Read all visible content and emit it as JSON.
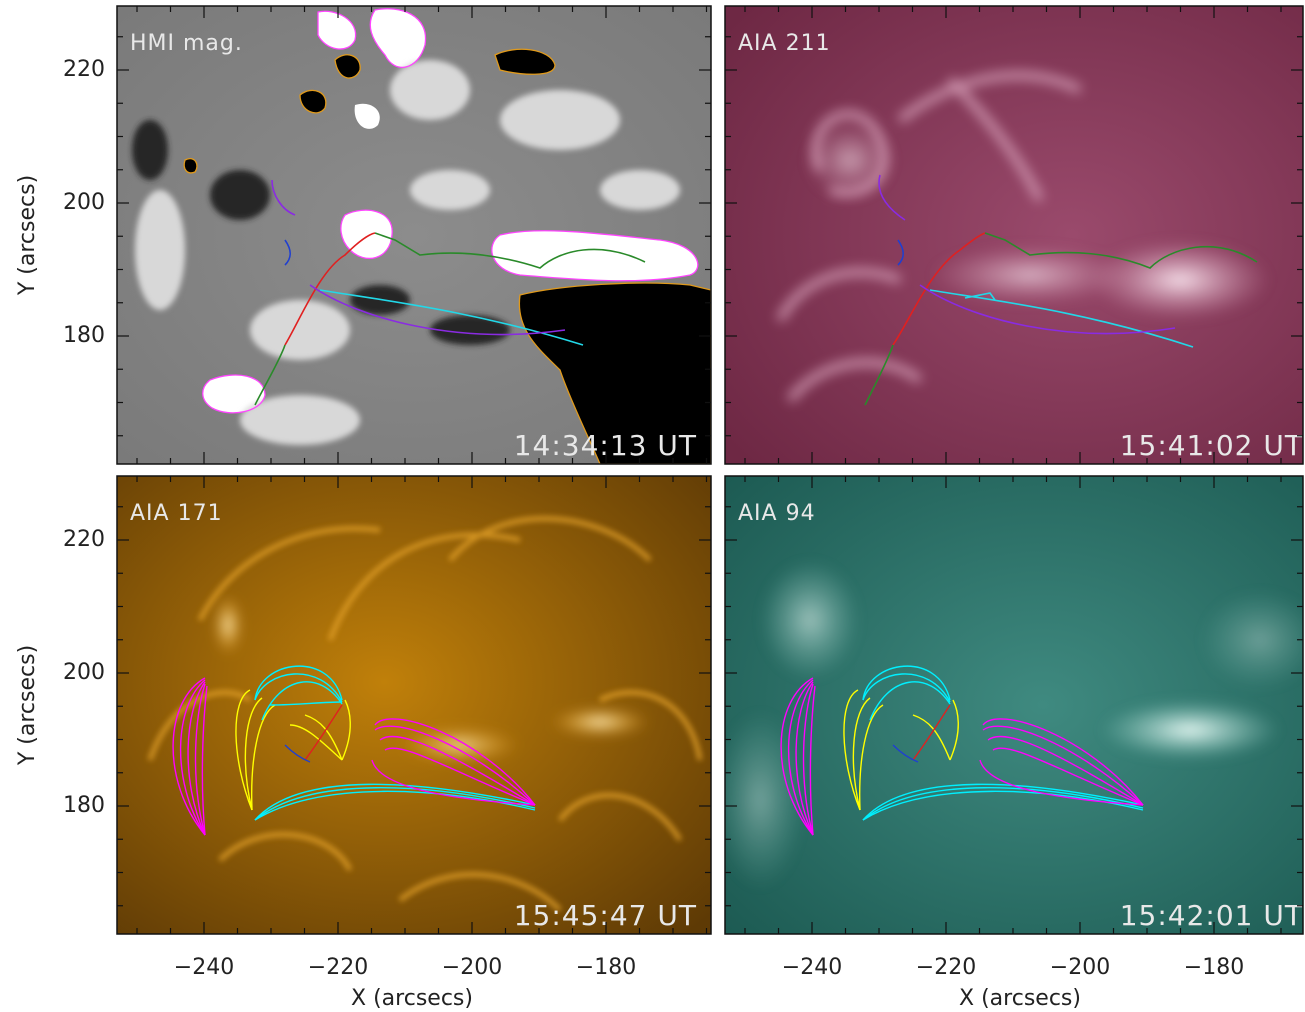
{
  "figure": {
    "x_axis_label": "X (arcsecs)",
    "y_axis_label": "Y (arcsecs)",
    "x_ticks": [
      "−240",
      "−220",
      "−200",
      "−180"
    ],
    "y_ticks": [
      "220",
      "200",
      "180"
    ]
  },
  "panels": [
    {
      "id": "hmi",
      "label": "HMI mag.",
      "time": "14:34:13 UT",
      "colormap": "gray"
    },
    {
      "id": "aia211",
      "label": "AIA 211",
      "time": "15:41:02 UT",
      "colormap": "purple"
    },
    {
      "id": "aia171",
      "label": "AIA 171",
      "time": "15:45:47 UT",
      "colormap": "orange"
    },
    {
      "id": "aia94",
      "label": "AIA 94",
      "time": "15:42:01 UT",
      "colormap": "teal"
    }
  ],
  "colors": {
    "positive_contour": "#ff44ff",
    "negative_contour": "#e09a1c",
    "red_line": "#e02020",
    "green_line": "#2a8a2a",
    "cyan_line": "#22d8e8",
    "violet_line": "#8a2be2",
    "blue_line": "#1f3fd0",
    "magenta_fieldlines": "#ff00ff",
    "yellow_fieldlines": "#ffff00",
    "cyan_fieldlines": "#00f0ff"
  }
}
